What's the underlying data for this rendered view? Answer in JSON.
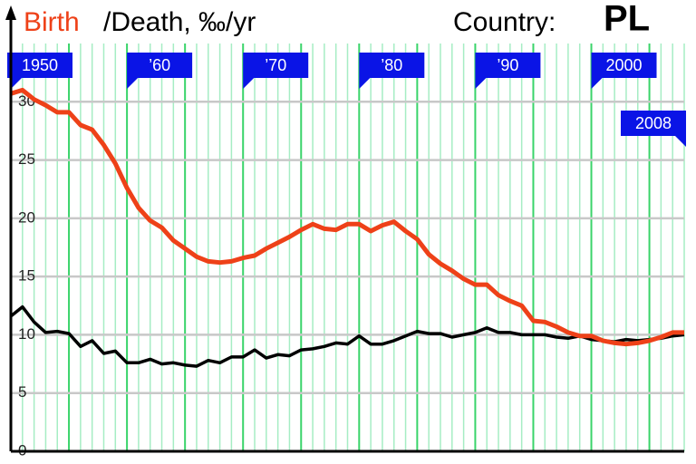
{
  "chart_data": {
    "type": "line",
    "title": "/Death, ‰/yr",
    "country_label": "Country:",
    "country": "PL",
    "x": [
      1950,
      1951,
      1952,
      1953,
      1954,
      1955,
      1956,
      1957,
      1958,
      1959,
      1960,
      1961,
      1962,
      1963,
      1964,
      1965,
      1966,
      1967,
      1968,
      1969,
      1970,
      1971,
      1972,
      1973,
      1974,
      1975,
      1976,
      1977,
      1978,
      1979,
      1980,
      1981,
      1982,
      1983,
      1984,
      1985,
      1986,
      1987,
      1988,
      1989,
      1990,
      1991,
      1992,
      1993,
      1994,
      1995,
      1996,
      1997,
      1998,
      1999,
      2000,
      2001,
      2002,
      2003,
      2004,
      2005,
      2006,
      2007,
      2008
    ],
    "series": [
      {
        "name": "Birth",
        "color": "#ee4118",
        "values": [
          30.7,
          31.0,
          30.2,
          29.7,
          29.1,
          29.1,
          28.0,
          27.6,
          26.3,
          24.7,
          22.6,
          20.9,
          19.8,
          19.2,
          18.1,
          17.4,
          16.7,
          16.3,
          16.2,
          16.3,
          16.6,
          16.8,
          17.4,
          17.9,
          18.4,
          19.0,
          19.5,
          19.1,
          19.0,
          19.5,
          19.5,
          18.9,
          19.4,
          19.7,
          18.9,
          18.2,
          16.9,
          16.1,
          15.5,
          14.8,
          14.3,
          14.3,
          13.4,
          12.9,
          12.5,
          11.2,
          11.1,
          10.7,
          10.2,
          9.9,
          9.9,
          9.5,
          9.3,
          9.2,
          9.3,
          9.5,
          9.8,
          10.2,
          10.2
        ]
      },
      {
        "color": "#000000",
        "values": [
          11.6,
          12.4,
          11.1,
          10.2,
          10.3,
          10.1,
          9.0,
          9.5,
          8.4,
          8.6,
          7.6,
          7.6,
          7.9,
          7.5,
          7.6,
          7.4,
          7.3,
          7.8,
          7.6,
          8.1,
          8.1,
          8.7,
          8.0,
          8.3,
          8.2,
          8.7,
          8.8,
          9.0,
          9.3,
          9.2,
          9.9,
          9.2,
          9.2,
          9.5,
          9.9,
          10.3,
          10.1,
          10.1,
          9.8,
          10.0,
          10.2,
          10.6,
          10.2,
          10.2,
          10.0,
          10.0,
          10.0,
          9.8,
          9.7,
          9.9,
          9.6,
          9.5,
          9.4,
          9.6,
          9.5,
          9.6,
          9.7,
          9.9,
          10.0
        ]
      }
    ],
    "xlim": [
      1950,
      2008
    ],
    "xticks": [
      1950,
      {
        "value": 1960,
        "label": "’60"
      },
      {
        "value": 1970,
        "label": "’70"
      },
      {
        "value": 1980,
        "label": "’80"
      },
      {
        "value": 1990,
        "label": "’90"
      },
      2000,
      2008
    ],
    "ylim": [
      0,
      35
    ],
    "yticks": [
      0,
      5,
      10,
      15,
      20,
      25,
      30
    ],
    "grid": true
  }
}
